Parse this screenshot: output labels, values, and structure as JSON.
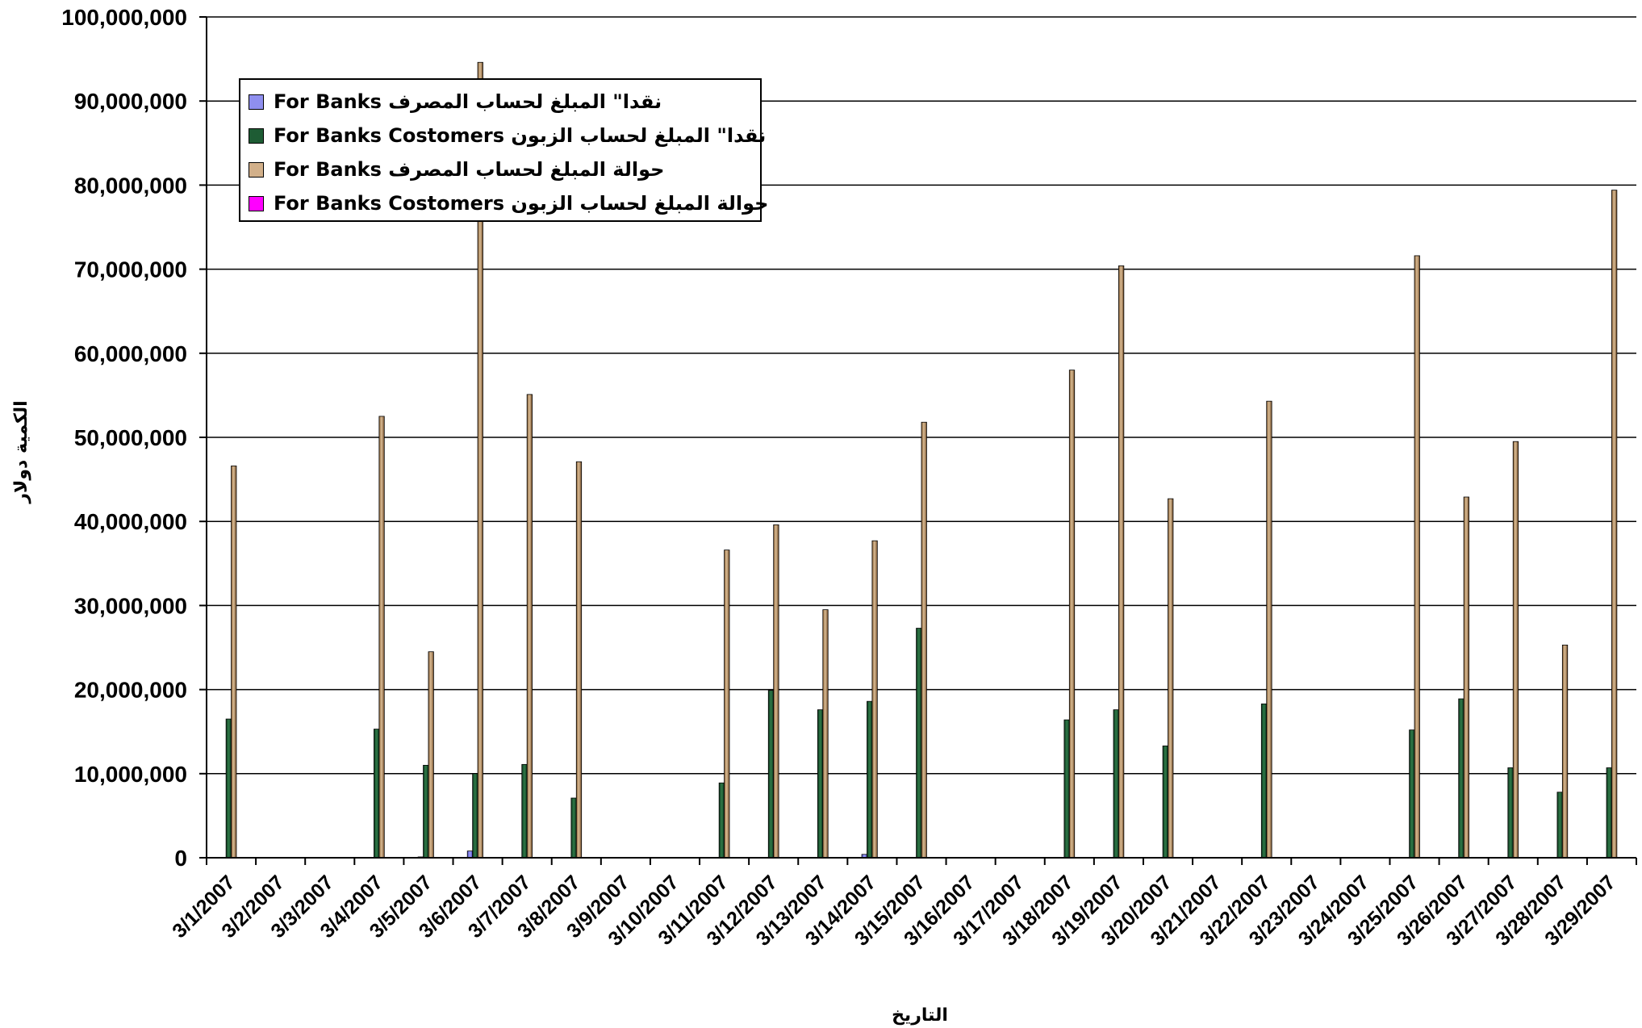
{
  "chart_data": {
    "type": "bar",
    "title": "",
    "xlabel": "التاريخ",
    "ylabel": "الكمية دولار",
    "ylim": [
      0,
      100000000
    ],
    "ytick_labels": [
      "0",
      "10,000,000",
      "20,000,000",
      "30,000,000",
      "40,000,000",
      "50,000,000",
      "60,000,000",
      "70,000,000",
      "80,000,000",
      "90,000,000",
      "100,000,000"
    ],
    "yticks": [
      0,
      10000000,
      20000000,
      30000000,
      40000000,
      50000000,
      60000000,
      70000000,
      80000000,
      90000000,
      100000000
    ],
    "categories": [
      "3/1/2007",
      "3/2/2007",
      "3/3/2007",
      "3/4/2007",
      "3/5/2007",
      "3/6/2007",
      "3/7/2007",
      "3/8/2007",
      "3/9/2007",
      "3/10/2007",
      "3/11/2007",
      "3/12/2007",
      "3/13/2007",
      "3/14/2007",
      "3/15/2007",
      "3/16/2007",
      "3/17/2007",
      "3/18/2007",
      "3/19/2007",
      "3/20/2007",
      "3/21/2007",
      "3/22/2007",
      "3/23/2007",
      "3/24/2007",
      "3/25/2007",
      "3/26/2007",
      "3/27/2007",
      "3/28/2007",
      "3/29/2007"
    ],
    "grid": true,
    "legend_position": "top-left",
    "series": [
      {
        "name": "نقدا\" المبلغ لحساب المصرف For Banks",
        "color": "#8080ff",
        "values": [
          0,
          0,
          0,
          0,
          100000,
          800000,
          0,
          0,
          0,
          0,
          0,
          0,
          0,
          400000,
          0,
          0,
          0,
          0,
          0,
          0,
          0,
          0,
          0,
          0,
          0,
          0,
          0,
          0,
          0
        ]
      },
      {
        "name": "نقدا\" المبلغ لحساب الزبون For Banks Costomers",
        "color": "#1e5c34",
        "values": [
          16500000,
          0,
          0,
          15300000,
          11000000,
          10000000,
          11100000,
          7100000,
          0,
          0,
          8900000,
          19900000,
          17600000,
          18600000,
          27300000,
          0,
          0,
          16400000,
          17600000,
          13300000,
          0,
          18300000,
          0,
          0,
          15200000,
          18900000,
          10700000,
          7800000,
          10700000
        ]
      },
      {
        "name": "حوالة المبلغ لحساب المصرف For Banks",
        "color": "#c9a67c",
        "values": [
          46600000,
          0,
          0,
          52500000,
          24500000,
          94600000,
          55100000,
          47100000,
          0,
          0,
          36600000,
          39600000,
          29500000,
          37700000,
          51800000,
          0,
          0,
          58000000,
          70400000,
          42700000,
          0,
          54300000,
          0,
          0,
          71600000,
          42900000,
          49500000,
          25300000,
          79400000
        ]
      },
      {
        "name": "حوالة المبلغ لحساب الزبون For Banks Costomers",
        "color": "#ff00ff",
        "values": [
          0,
          0,
          0,
          0,
          0,
          0,
          0,
          0,
          0,
          0,
          0,
          0,
          0,
          0,
          0,
          0,
          0,
          0,
          0,
          0,
          0,
          0,
          0,
          0,
          0,
          0,
          0,
          0,
          0
        ]
      }
    ]
  }
}
